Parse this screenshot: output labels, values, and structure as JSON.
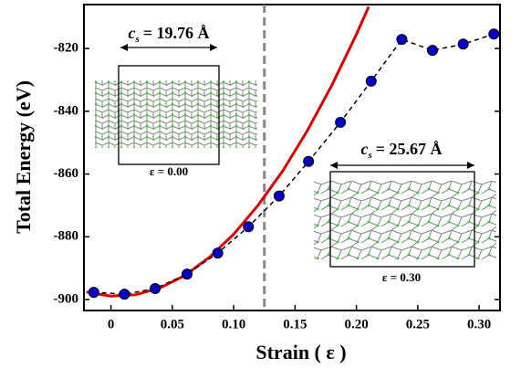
{
  "chart_data": {
    "type": "line",
    "xlabel": "Strain ( ε )",
    "ylabel": "Total Energy (eV)",
    "xlim": [
      -0.022,
      0.317
    ],
    "ylim": [
      -903.5,
      -806
    ],
    "xticks": [
      0,
      0.05,
      {
        "value": 0.1,
        "label": "0.10"
      },
      0.15,
      {
        "value": 0.2,
        "label": "0.20"
      },
      0.25,
      {
        "value": 0.3,
        "label": "0.30"
      }
    ],
    "yticks": [
      -900,
      -880,
      -860,
      -840,
      -820
    ],
    "vline": 0.125,
    "series": [
      {
        "color": "#0000cc",
        "style": "dashed-markers",
        "x": [
          -0.014,
          0.011,
          0.036,
          0.062,
          0.087,
          0.112,
          0.137,
          0.161,
          0.187,
          0.212,
          0.237,
          0.262,
          0.287,
          0.312
        ],
        "values": [
          -897.7,
          -898.3,
          -896.5,
          -891.9,
          -885.2,
          -876.8,
          -867,
          -856,
          -843.5,
          -830.4,
          -817.1,
          -820.6,
          -818.6,
          -815.4
        ]
      },
      {
        "color": "#e00000",
        "style": "solid",
        "x": [
          -0.02,
          0,
          0.02,
          0.04,
          0.06,
          0.08,
          0.1,
          0.12,
          0.14,
          0.16,
          0.18,
          0.2,
          0.21
        ],
        "values": [
          -897.6,
          -898.9,
          -898.5,
          -896.3,
          -892.4,
          -886.6,
          -879.2,
          -869.9,
          -859.0,
          -846.2,
          -831.7,
          -815.5,
          -806.7
        ]
      }
    ],
    "annotations": [
      {
        "symbol": "c",
        "subscript": "s",
        "text": "= 19.76 Å",
        "strain": "ε = 0.00"
      },
      {
        "symbol": "c",
        "subscript": "s",
        "text": "= 25.67 Å",
        "strain": "ε = 0.30"
      }
    ]
  }
}
